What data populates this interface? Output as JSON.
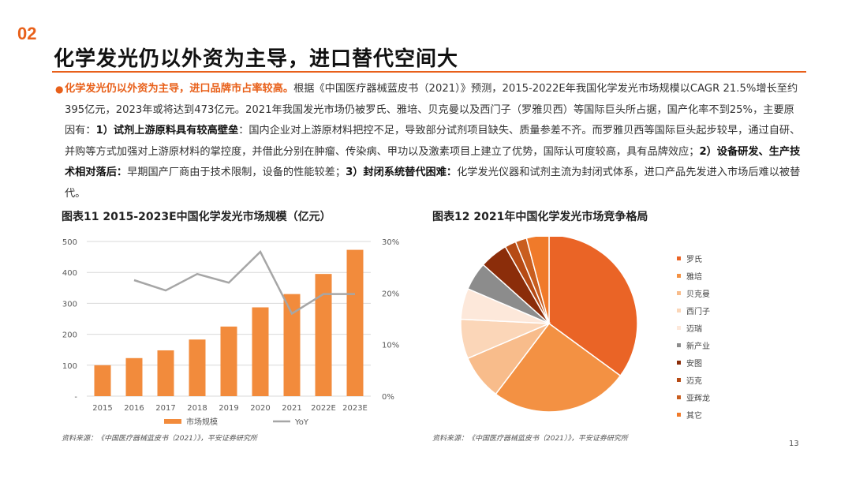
{
  "header": {
    "section_number": "02",
    "title": "化学发光仍以外资为主导，进口替代空间大"
  },
  "bullet": {
    "lead": "化学发光仍以外资为主导，进口品牌市占率较高。",
    "p1": "根据《中国医疗器械蓝皮书（2021）》预测，2015-2022E年我国化学发光市场规模以CAGR 21.5%增长至约395亿元，2023年或将达到473亿元。2021年我国发光市场仍被罗氏、雅培、贝克曼以及西门子（罗雅贝西）等国际巨头所占据，国产化率不到25%，主要原因有：",
    "r1": "1）试剂上游原料具有较高壁垒",
    "p2": "：国内企业对上游原材料把控不足，导致部分试剂项目缺失、质量参差不齐。而罗雅贝西等国际巨头起步较早，通过自研、并购等方式加强对上游原材料的掌控度，并借此分别在肿瘤、传染病、甲功以及激素项目上建立了优势，国际认可度较高，具有品牌效应；",
    "r2": "2）设备研发、生产技术相对落后：",
    "p3": "早期国产厂商由于技术限制，设备的性能较差；",
    "r3": "3）封闭系统替代困难：",
    "p4": "化学发光仪器和试剂主流为封闭式体系，进口产品先发进入市场后难以被替代。"
  },
  "figure1": {
    "title": "图表11 2015-2023E中国化学发光市场规模（亿元）",
    "source": "资料来源：《中国医疗器械蓝皮书（2021）》，平安证券研究所"
  },
  "figure2": {
    "title": "图表12 2021年中国化学发光市场竞争格局",
    "source": "资料来源：《中国医疗器械蓝皮书（2021）》，平安证券研究所"
  },
  "page_number": "13",
  "chart_data": [
    {
      "type": "bar",
      "categories": [
        "2015",
        "2016",
        "2017",
        "2018",
        "2019",
        "2020",
        "2021",
        "2022E",
        "2023E"
      ],
      "series": [
        {
          "name": "市场规模",
          "type": "bar",
          "axis": "left",
          "color": "#f28b3c",
          "values": [
            100,
            123,
            148,
            183,
            225,
            287,
            330,
            395,
            473
          ]
        },
        {
          "name": "YoY",
          "type": "line",
          "axis": "right",
          "color": "#a6a6a6",
          "values": [
            null,
            0.225,
            0.205,
            0.237,
            0.22,
            0.28,
            0.16,
            0.198,
            0.198
          ]
        }
      ],
      "y_left": {
        "ticks": [
          "-",
          "100",
          "200",
          "300",
          "400",
          "500"
        ],
        "range": [
          0,
          500
        ]
      },
      "y_right": {
        "ticks": [
          "0%",
          "10%",
          "20%",
          "30%"
        ],
        "range": [
          0,
          0.3
        ]
      },
      "grid": true,
      "legend": "bottom"
    },
    {
      "type": "pie",
      "labels": [
        "罗氏",
        "雅培",
        "贝克曼",
        "西门子",
        "迈瑞",
        "新产业",
        "安图",
        "迈克",
        "亚辉龙",
        "其它"
      ],
      "values": [
        34,
        24.5,
        8,
        7,
        5.5,
        5,
        5,
        2,
        2,
        4
      ],
      "colors": [
        "#ea6426",
        "#f39143",
        "#f8bc8b",
        "#fbd6b8",
        "#fde8da",
        "#8c8c8c",
        "#8b2d0a",
        "#b64a14",
        "#c95e1f",
        "#f07a2a"
      ],
      "legend": "right"
    }
  ]
}
